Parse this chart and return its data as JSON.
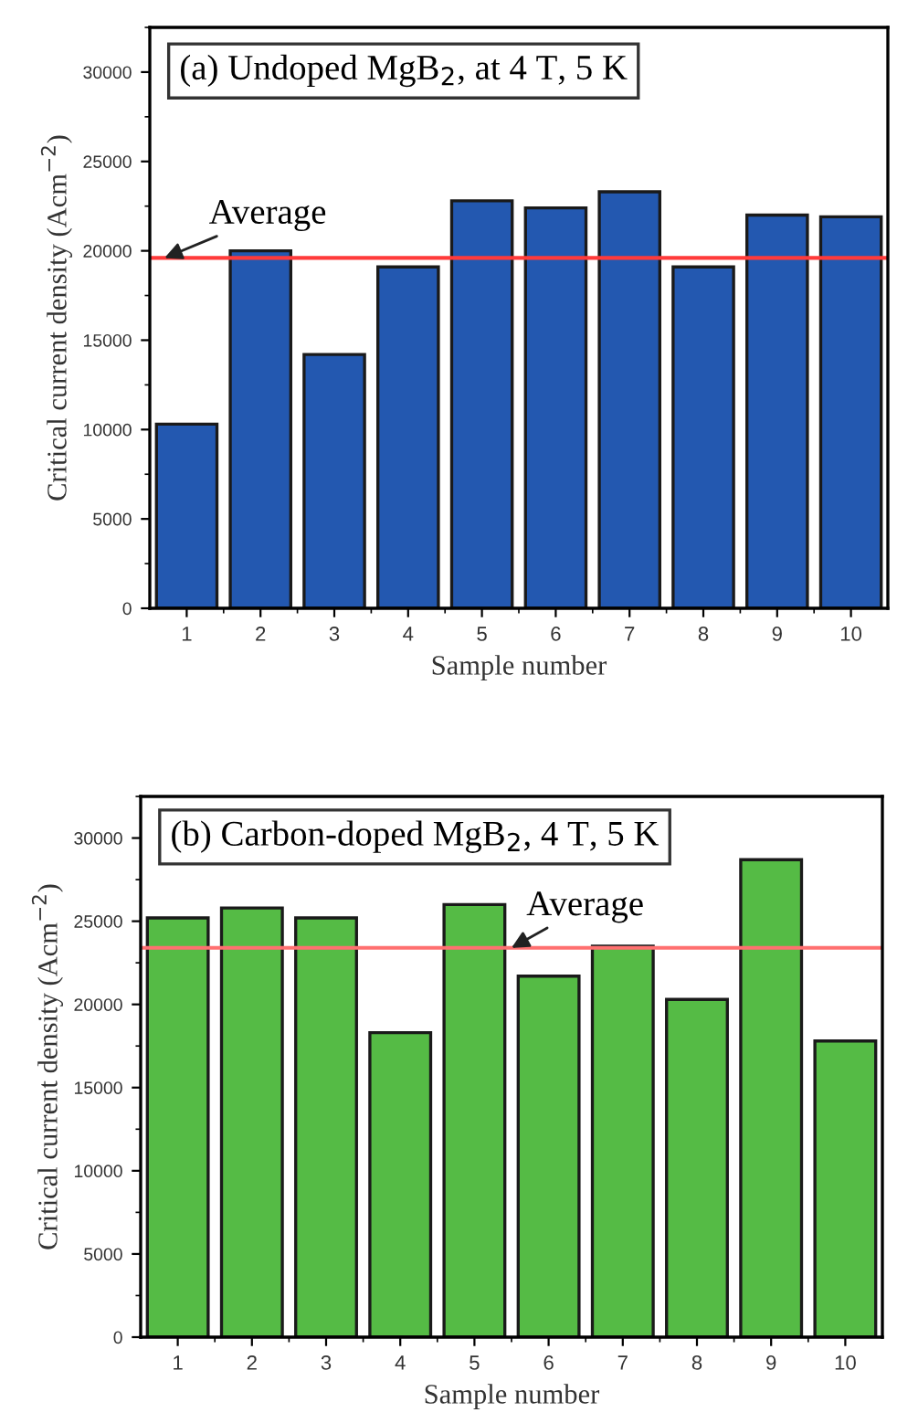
{
  "chart_data": [
    {
      "type": "bar",
      "title": "(a) Undoped MgB$_{2}$, at 4 T, 5 K",
      "xlabel": "Sample number",
      "ylabel": "Critical current density (Acm$^{−2}$)",
      "categories": [
        "1",
        "2",
        "3",
        "4",
        "5",
        "6",
        "7",
        "8",
        "9",
        "10"
      ],
      "values": [
        10300,
        20000,
        14200,
        19100,
        22800,
        22400,
        23300,
        19100,
        22000,
        21900
      ],
      "color": "#2358b0",
      "ylim": [
        0,
        32500
      ],
      "yticks": [
        0,
        5000,
        10000,
        15000,
        20000,
        25000,
        30000
      ],
      "grid": false,
      "legend": false,
      "ref_lines": [
        {
          "axis": "y",
          "value": 19600,
          "label": "Average",
          "color": "#ff3a3a"
        }
      ]
    },
    {
      "type": "bar",
      "title": "(b) Carbon-doped MgB$_{2}$, 4 T, 5 K",
      "xlabel": "Sample number",
      "ylabel": "Critical current density (Acm$^{−2}$)",
      "categories": [
        "1",
        "2",
        "3",
        "4",
        "5",
        "6",
        "7",
        "8",
        "9",
        "10"
      ],
      "values": [
        25200,
        25800,
        25200,
        18300,
        26000,
        21700,
        23500,
        20300,
        28700,
        17800
      ],
      "color": "#55bb45",
      "ylim": [
        0,
        32500
      ],
      "yticks": [
        0,
        5000,
        10000,
        15000,
        20000,
        25000,
        30000
      ],
      "grid": false,
      "legend": false,
      "ref_lines": [
        {
          "axis": "y",
          "value": 23400,
          "label": "Average",
          "color": "#ff7070"
        }
      ]
    }
  ]
}
